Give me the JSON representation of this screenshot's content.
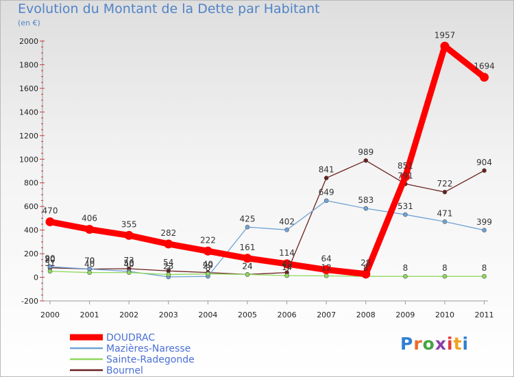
{
  "chart_data": {
    "type": "line",
    "title": "Evolution du Montant de la Dette par Habitant",
    "subtitle": "(en €)",
    "x": [
      "2000",
      "2001",
      "2002",
      "2003",
      "2004",
      "2005",
      "2006",
      "2007",
      "2008",
      "2009",
      "2010",
      "2011"
    ],
    "ylim": [
      -200,
      2000
    ],
    "yticks": [
      -200,
      0,
      200,
      400,
      600,
      800,
      1000,
      1200,
      1400,
      1600,
      1800,
      2000
    ],
    "grid": false,
    "legend_position": "bottom-left",
    "series": [
      {
        "name": "DOUDRAC",
        "color": "#ff0000",
        "values": [
          470,
          406,
          355,
          282,
          222,
          161,
          114,
          64,
          28,
          851,
          1957,
          1694
        ]
      },
      {
        "name": "Mazières-Naresse",
        "color": "#6fa3d6",
        "values": [
          90,
          70,
          50,
          3,
          8,
          425,
          402,
          649,
          583,
          531,
          471,
          399
        ]
      },
      {
        "name": "Sainte-Radegonde",
        "color": "#8ed85c",
        "values": [
          51,
          40,
          40,
          23,
          29,
          24,
          14,
          12,
          8,
          8,
          8,
          8
        ]
      },
      {
        "name": "Bournel",
        "color": "#6b1f1f",
        "values": [
          80,
          70,
          73,
          54,
          40,
          24,
          40,
          841,
          989,
          791,
          722,
          904
        ]
      }
    ]
  },
  "logo": {
    "text": "Proxiti",
    "letter_colors": [
      "#2f7fd1",
      "#ea6b2a",
      "#42a541",
      "#8a3fa7",
      "#e4383b",
      "#f0a21d",
      "#2f7fd1"
    ]
  }
}
